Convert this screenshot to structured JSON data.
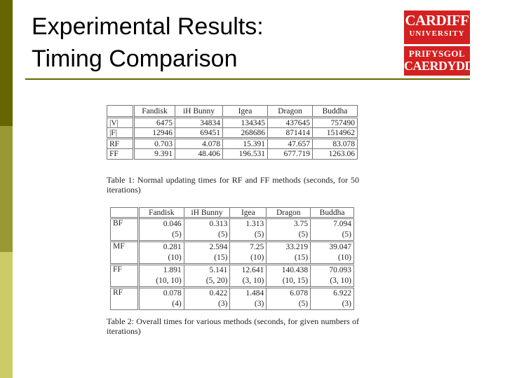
{
  "header": {
    "title": [
      "Experimental Results:",
      "Timing Comparison"
    ]
  },
  "logo": {
    "top": [
      "CARDIFF",
      "UNIVERSITY"
    ],
    "bottom": [
      "PRIFYSGOL",
      "CAERDYDD"
    ]
  },
  "table1": {
    "columns": [
      "Fandisk",
      "iH Bunny",
      "Igea",
      "Dragon",
      "Buddha"
    ],
    "groups": [
      [
        {
          "label": "|V|",
          "cells": [
            "6475",
            "34834",
            "134345",
            "437645",
            "757490"
          ]
        },
        {
          "label": "|F|",
          "cells": [
            "12946",
            "69451",
            "268686",
            "871414",
            "1514962"
          ]
        }
      ],
      [
        {
          "label": "RF",
          "cells": [
            "0.703",
            "4.078",
            "15.391",
            "47.657",
            "83.078"
          ]
        },
        {
          "label": "FF",
          "cells": [
            "9.391",
            "48.406",
            "196.531",
            "677.719",
            "1263.06"
          ]
        }
      ]
    ],
    "caption": "Table 1: Normal updating times for RF and FF methods (seconds, for 50 iterations)"
  },
  "table2": {
    "columns": [
      "Fandisk",
      "iH Bunny",
      "Igea",
      "Dragon",
      "Buddha"
    ],
    "rows": [
      {
        "label": "BF",
        "times": [
          "0.046",
          "0.313",
          "1.313",
          "3.75",
          "7.094"
        ],
        "iterations": [
          "(5)",
          "(5)",
          "(5)",
          "(5)",
          "(5)"
        ]
      },
      {
        "label": "MF",
        "times": [
          "0.281",
          "2.594",
          "7.25",
          "33.219",
          "39.047"
        ],
        "iterations": [
          "(10)",
          "(15)",
          "(10)",
          "(15)",
          "(10)"
        ]
      },
      {
        "label": "FF",
        "times": [
          "1.891",
          "5.141",
          "12.641",
          "140.438",
          "70.093"
        ],
        "iterations": [
          "(10, 10)",
          "(5, 20)",
          "(3, 10)",
          "(10, 15)",
          "(3, 10)"
        ]
      },
      {
        "label": "RF",
        "times": [
          "0.078",
          "0.422",
          "1.484",
          "6.078",
          "6.922"
        ],
        "iterations": [
          "(4)",
          "(3)",
          "(3)",
          "(5)",
          "(3)"
        ]
      }
    ],
    "caption": "Table 2: Overall times for various methods (seconds, for given numbers of iterations)"
  }
}
